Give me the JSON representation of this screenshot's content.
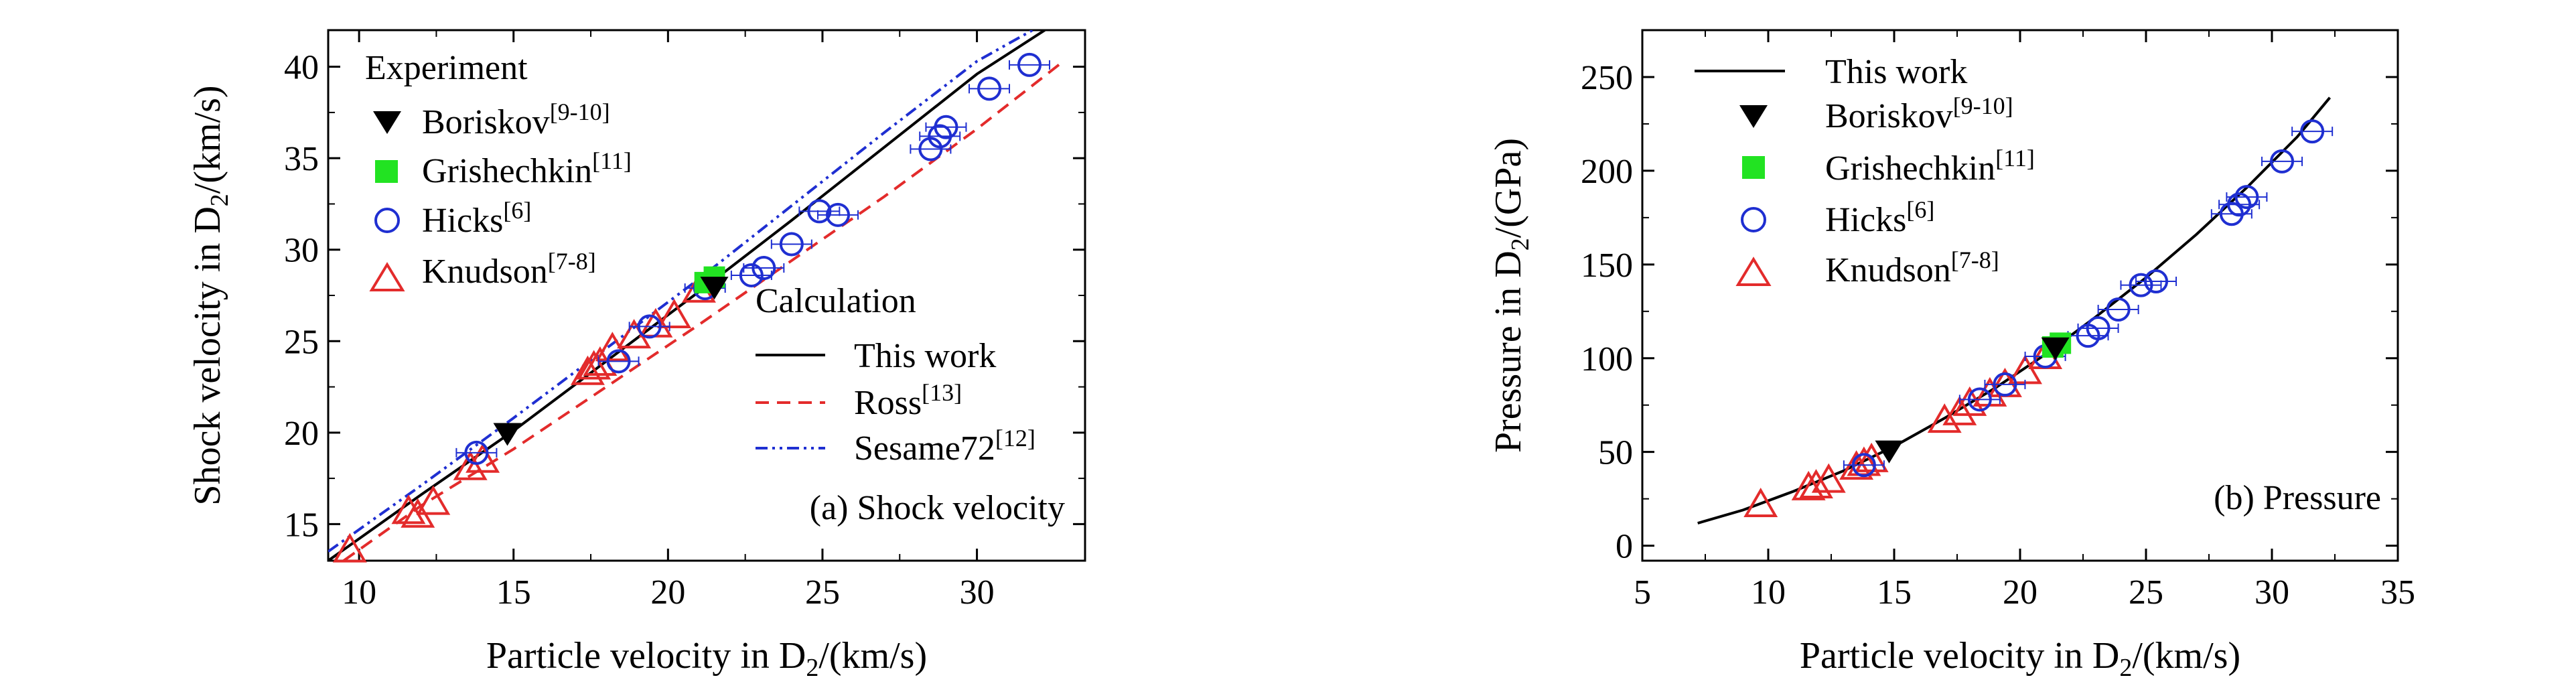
{
  "colors": {
    "this_work": "#000000",
    "ross": "#e32b2b",
    "sesame": "#1f2fd1",
    "boriskov": "#000000",
    "grishechkin": "#22e322",
    "hicks": "#1f2fd1",
    "knudson": "#e32b2b"
  },
  "chart_data": [
    {
      "type": "scatter",
      "panel_label": "(a) Shock velocity",
      "xlabel": "Particle velocity in D",
      "xlabel_sub": "2",
      "xlabel_tail": "/(km/s)",
      "ylabel": "Shock velocity in D",
      "ylabel_sub": "2",
      "ylabel_tail": "/(km/s)",
      "xlim": [
        9,
        33.5
      ],
      "ylim": [
        13,
        42
      ],
      "xticks": [
        10,
        15,
        20,
        25,
        30
      ],
      "yticks": [
        15,
        20,
        25,
        30,
        35,
        40
      ],
      "legend_experiment_title": "Experiment",
      "legend_calc_title": "Calculation",
      "series": [
        {
          "name": "Boriskov",
          "ref": "[9-10]",
          "marker": "down-triangle",
          "x": [
            14.8,
            21.5
          ],
          "y": [
            19.9,
            27.9
          ]
        },
        {
          "name": "Grishechkin",
          "ref": "[11]",
          "marker": "square",
          "x": [
            21.2,
            21.5
          ],
          "y": [
            28.2,
            28.5
          ]
        },
        {
          "name": "Hicks",
          "ref": "[6]",
          "marker": "circle",
          "x": [
            13.8,
            18.4,
            19.4,
            21.2,
            22.7,
            23.1,
            24.0,
            24.9,
            25.5,
            28.5,
            28.8,
            29.0,
            30.4,
            31.7
          ],
          "y": [
            18.9,
            23.9,
            25.8,
            27.9,
            28.6,
            29.0,
            30.3,
            32.1,
            31.9,
            35.5,
            36.2,
            36.7,
            38.8,
            40.1
          ]
        },
        {
          "name": "Knudson",
          "ref": "[7-8]",
          "marker": "up-triangle",
          "x": [
            9.7,
            11.6,
            11.9,
            12.4,
            13.6,
            14.0,
            17.4,
            17.6,
            17.8,
            18.2,
            18.9,
            19.6,
            20.2,
            21.0
          ],
          "y": [
            13.6,
            15.7,
            15.5,
            16.2,
            18.1,
            18.5,
            23.3,
            23.6,
            23.8,
            24.6,
            25.3,
            25.9,
            26.4,
            27.8
          ]
        },
        {
          "name": "This work",
          "ref": "",
          "line": "solid",
          "x": [
            9,
            12,
            15,
            18,
            21,
            24,
            27,
            30,
            32.2
          ],
          "y": [
            13.0,
            16.6,
            20.1,
            23.9,
            27.7,
            31.6,
            35.6,
            39.6,
            42.0
          ]
        },
        {
          "name": "Ross",
          "ref": "[13]",
          "line": "dashed",
          "x": [
            9.5,
            12,
            15,
            18,
            21,
            24,
            27,
            30,
            32.8
          ],
          "y": [
            13.0,
            16.0,
            19.1,
            22.5,
            25.9,
            29.4,
            32.9,
            36.6,
            40.3
          ]
        },
        {
          "name": "Sesame72",
          "ref": "[12]",
          "line": "dashdot",
          "x": [
            9,
            12,
            15,
            18,
            21,
            24,
            27,
            30,
            31.8
          ],
          "y": [
            13.5,
            17.1,
            20.8,
            24.6,
            28.4,
            32.4,
            36.4,
            40.3,
            42.0
          ]
        }
      ]
    },
    {
      "type": "scatter",
      "panel_label": "(b) Pressure",
      "xlabel": "Particle velocity in D",
      "xlabel_sub": "2",
      "xlabel_tail": "/(km/s)",
      "ylabel": "Pressure in D",
      "ylabel_sub": "2",
      "ylabel_tail": "/(GPa)",
      "xlim": [
        5,
        35
      ],
      "ylim": [
        -8,
        275
      ],
      "xticks": [
        5,
        10,
        15,
        20,
        25,
        30,
        35
      ],
      "yticks": [
        0,
        50,
        100,
        150,
        200,
        250
      ],
      "series": [
        {
          "name": "This work",
          "ref": "",
          "line": "solid",
          "x": [
            7.2,
            9,
            11,
            13,
            15,
            17,
            19,
            21,
            23,
            25,
            27,
            29,
            31,
            32.3
          ],
          "y": [
            12,
            19,
            29,
            40,
            53,
            68,
            84,
            102,
            122,
            143,
            166,
            191,
            218,
            239
          ]
        },
        {
          "name": "Boriskov",
          "ref": "[9-10]",
          "marker": "down-triangle",
          "x": [
            14.8,
            21.4
          ],
          "y": [
            50,
            105
          ]
        },
        {
          "name": "Grishechkin",
          "ref": "[11]",
          "marker": "square",
          "x": [
            21.3,
            21.6
          ],
          "y": [
            106,
            108
          ]
        },
        {
          "name": "Hicks",
          "ref": "[6]",
          "marker": "circle",
          "x": [
            13.8,
            18.4,
            19.4,
            21.0,
            22.7,
            23.1,
            23.9,
            24.8,
            25.4,
            28.4,
            28.7,
            29.0,
            30.4,
            31.6
          ],
          "y": [
            43,
            78,
            86,
            101,
            112,
            116,
            126,
            139,
            141,
            177,
            182,
            186,
            205,
            221
          ]
        },
        {
          "name": "Knudson",
          "ref": "[7-8]",
          "marker": "up-triangle",
          "x": [
            9.7,
            11.6,
            11.9,
            12.4,
            13.5,
            13.8,
            14.1,
            17.0,
            17.6,
            18.0,
            18.8,
            19.4,
            20.2,
            21.0
          ],
          "y": [
            22,
            31,
            32,
            35,
            42,
            44,
            46,
            67,
            71,
            76,
            81,
            86,
            93,
            101
          ]
        }
      ]
    }
  ]
}
